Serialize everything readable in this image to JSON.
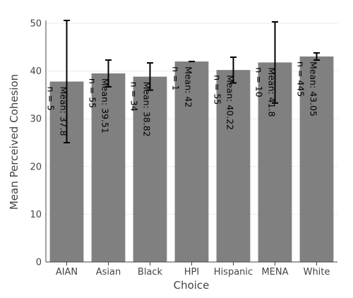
{
  "chart_data": {
    "type": "bar",
    "xlabel": "Choice",
    "ylabel": "Mean Perceived Cohesion",
    "ylim": [
      0,
      52
    ],
    "yticks": [
      0,
      10,
      20,
      30,
      40,
      50
    ],
    "grid": true,
    "colors": {
      "bar": "#808080",
      "error_bar": "#000000",
      "grid": "#ebebeb",
      "axis": "#444444"
    },
    "categories": [
      "AIAN",
      "Asian",
      "Black",
      "HPI",
      "Hispanic",
      "MENA",
      "White"
    ],
    "values": [
      37.8,
      39.51,
      38.82,
      42,
      40.22,
      41.8,
      43.05
    ],
    "error_low": [
      25.0,
      36.7,
      36.0,
      42.0,
      37.5,
      33.3,
      42.3
    ],
    "error_high": [
      50.6,
      42.3,
      41.7,
      42.0,
      42.9,
      50.3,
      43.8
    ],
    "bar_labels": [
      [
        "Mean: 37.8",
        "n = 5"
      ],
      [
        "Mean: 39.51",
        "n = 55"
      ],
      [
        "Mean: 38.82",
        "n = 34"
      ],
      [
        "Mean: 42",
        "n = 1"
      ],
      [
        "Mean: 40.22",
        "n = 55"
      ],
      [
        "Mean: 41.8",
        "n = 10"
      ],
      [
        "Mean: 43.05",
        "n = 445"
      ]
    ]
  }
}
